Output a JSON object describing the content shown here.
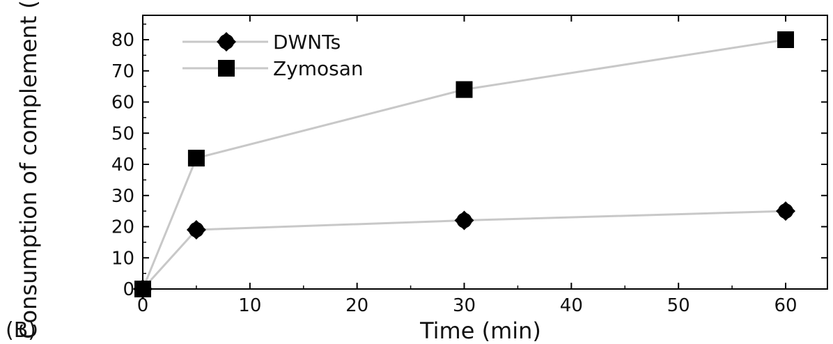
{
  "panel_label": "(B)",
  "chart_data": {
    "type": "line",
    "xlabel": "Time (min)",
    "ylabel": "Consumption of complement (%)",
    "xlim": [
      0,
      65
    ],
    "ylim": [
      0,
      90
    ],
    "xticks": [
      0,
      10,
      20,
      30,
      40,
      50,
      60
    ],
    "yticks": [
      0,
      10,
      20,
      30,
      40,
      50,
      60,
      70,
      80
    ],
    "grid": false,
    "legend_position": "top-left",
    "series": [
      {
        "name": "DWNTs",
        "marker": "diamond",
        "color": "#000000",
        "line_color": "#c8c8c8",
        "x": [
          0,
          5,
          30,
          60
        ],
        "y": [
          0,
          19,
          22,
          25
        ]
      },
      {
        "name": "Zymosan",
        "marker": "square",
        "color": "#000000",
        "line_color": "#c8c8c8",
        "x": [
          0,
          5,
          30,
          60
        ],
        "y": [
          0,
          42,
          64,
          80
        ]
      }
    ]
  }
}
